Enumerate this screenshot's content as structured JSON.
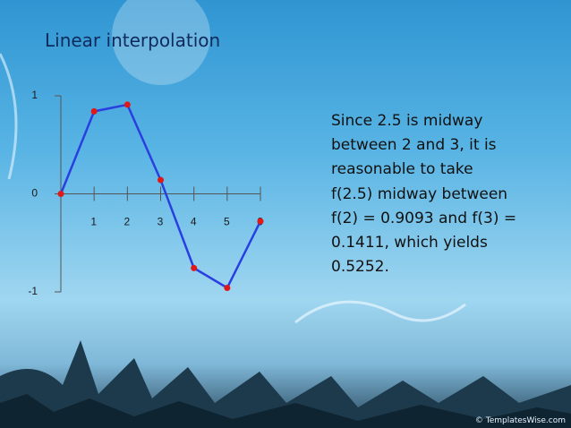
{
  "chart_data": {
    "type": "line",
    "title": "Linear interpolation",
    "x": [
      0,
      1,
      2,
      3,
      4,
      5,
      6
    ],
    "values": [
      0,
      0.8415,
      0.9093,
      0.1411,
      -0.7568,
      -0.9589,
      -0.2794
    ],
    "color": "#2a3fe0",
    "marker_color": "#e01818",
    "xlim": [
      0,
      6
    ],
    "xticks": [
      1,
      2,
      3,
      4,
      5,
      6
    ],
    "ylim": [
      -1,
      1
    ],
    "yticks": [
      -1,
      0,
      1
    ],
    "annotations": [
      "Since 2.5 is midway",
      "between 2 and 3, it is",
      "reasonable to take",
      "f(2.5) midway between",
      "f(2) = 0.9093 and f(3) =",
      "0.1411, which yields",
      "0.5252."
    ],
    "source": "© TemplatesWise.com"
  }
}
